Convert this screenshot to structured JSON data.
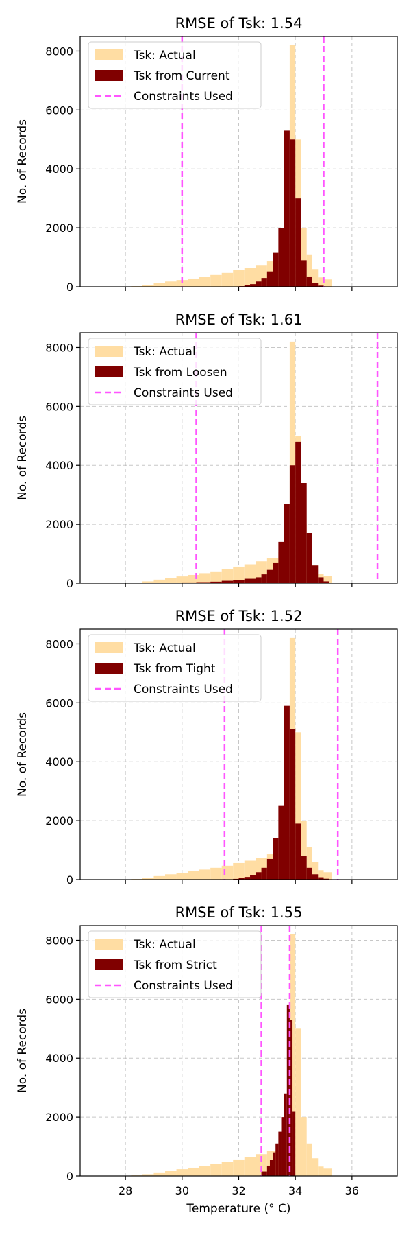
{
  "chart_data": [
    {
      "type": "bar",
      "title": "RMSE of Tsk: 1.54",
      "ylabel": "No. of Records",
      "xlabel": "",
      "xlim": [
        26.4,
        37.6
      ],
      "ylim": [
        0,
        8500
      ],
      "yticks": [
        0,
        2000,
        4000,
        6000,
        8000
      ],
      "xticks": [
        28,
        30,
        32,
        34,
        36
      ],
      "show_xtick_labels": false,
      "grid": true,
      "legend_position": "top-left",
      "colors": {
        "actual": "#ffdda3",
        "predicted": "#800000",
        "constraint": "#ff55ff"
      },
      "series": [
        {
          "name": "Tsk: Actual",
          "bins": [
            [
              27.8,
              28.2,
              10
            ],
            [
              28.2,
              28.6,
              20
            ],
            [
              28.6,
              29.0,
              60
            ],
            [
              29.0,
              29.4,
              120
            ],
            [
              29.4,
              29.8,
              180
            ],
            [
              29.8,
              30.2,
              230
            ],
            [
              30.2,
              30.6,
              280
            ],
            [
              30.6,
              31.0,
              340
            ],
            [
              31.0,
              31.4,
              400
            ],
            [
              31.4,
              31.8,
              470
            ],
            [
              31.8,
              32.2,
              560
            ],
            [
              32.2,
              32.6,
              640
            ],
            [
              32.6,
              33.0,
              740
            ],
            [
              33.0,
              33.4,
              860
            ],
            [
              33.4,
              33.6,
              1050
            ],
            [
              33.6,
              33.8,
              1450
            ],
            [
              33.8,
              34.0,
              8200
            ],
            [
              34.0,
              34.2,
              5000
            ],
            [
              34.2,
              34.4,
              2000
            ],
            [
              34.4,
              34.6,
              1100
            ],
            [
              34.6,
              34.8,
              600
            ],
            [
              34.8,
              35.0,
              320
            ],
            [
              35.0,
              35.3,
              250
            ]
          ]
        },
        {
          "name": "Tsk from Current",
          "bins": [
            [
              31.8,
              32.0,
              10
            ],
            [
              32.0,
              32.2,
              20
            ],
            [
              32.2,
              32.4,
              50
            ],
            [
              32.4,
              32.6,
              90
            ],
            [
              32.6,
              32.8,
              180
            ],
            [
              32.8,
              33.0,
              300
            ],
            [
              33.0,
              33.2,
              520
            ],
            [
              33.2,
              33.4,
              1150
            ],
            [
              33.4,
              33.6,
              2000
            ],
            [
              33.6,
              33.8,
              5300
            ],
            [
              33.8,
              34.0,
              5000
            ],
            [
              34.0,
              34.2,
              3000
            ],
            [
              34.2,
              34.4,
              900
            ],
            [
              34.4,
              34.6,
              350
            ],
            [
              34.6,
              34.8,
              120
            ],
            [
              34.8,
              35.0,
              40
            ]
          ]
        }
      ],
      "constraints_name": "Constraints Used",
      "constraints": [
        30.0,
        35.0
      ]
    },
    {
      "type": "bar",
      "title": "RMSE of Tsk: 1.61",
      "ylabel": "No. of Records",
      "xlabel": "",
      "xlim": [
        26.4,
        37.6
      ],
      "ylim": [
        0,
        8500
      ],
      "yticks": [
        0,
        2000,
        4000,
        6000,
        8000
      ],
      "xticks": [
        28,
        30,
        32,
        34,
        36
      ],
      "show_xtick_labels": false,
      "grid": true,
      "legend_position": "top-left",
      "colors": {
        "actual": "#ffdda3",
        "predicted": "#800000",
        "constraint": "#ff55ff"
      },
      "series": [
        {
          "name": "Tsk: Actual",
          "bins": [
            [
              27.8,
              28.2,
              10
            ],
            [
              28.2,
              28.6,
              20
            ],
            [
              28.6,
              29.0,
              60
            ],
            [
              29.0,
              29.4,
              120
            ],
            [
              29.4,
              29.8,
              180
            ],
            [
              29.8,
              30.2,
              230
            ],
            [
              30.2,
              30.6,
              280
            ],
            [
              30.6,
              31.0,
              340
            ],
            [
              31.0,
              31.4,
              400
            ],
            [
              31.4,
              31.8,
              470
            ],
            [
              31.8,
              32.2,
              560
            ],
            [
              32.2,
              32.6,
              640
            ],
            [
              32.6,
              33.0,
              740
            ],
            [
              33.0,
              33.4,
              860
            ],
            [
              33.4,
              33.6,
              1050
            ],
            [
              33.6,
              33.8,
              1450
            ],
            [
              33.8,
              34.0,
              8200
            ],
            [
              34.0,
              34.2,
              5000
            ],
            [
              34.2,
              34.4,
              2000
            ],
            [
              34.4,
              34.6,
              1100
            ],
            [
              34.6,
              34.8,
              600
            ],
            [
              34.8,
              35.0,
              320
            ],
            [
              35.0,
              35.3,
              250
            ]
          ]
        },
        {
          "name": "Tsk from Loosen",
          "bins": [
            [
              29.0,
              29.5,
              5
            ],
            [
              29.5,
              30.0,
              15
            ],
            [
              30.0,
              30.5,
              25
            ],
            [
              30.5,
              31.0,
              35
            ],
            [
              31.0,
              31.4,
              50
            ],
            [
              31.4,
              31.8,
              80
            ],
            [
              31.8,
              32.2,
              110
            ],
            [
              32.2,
              32.6,
              150
            ],
            [
              32.6,
              32.8,
              200
            ],
            [
              32.8,
              33.0,
              300
            ],
            [
              33.0,
              33.2,
              450
            ],
            [
              33.2,
              33.4,
              700
            ],
            [
              33.4,
              33.6,
              1400
            ],
            [
              33.6,
              33.8,
              2700
            ],
            [
              33.8,
              34.0,
              4000
            ],
            [
              34.0,
              34.2,
              4800
            ],
            [
              34.2,
              34.4,
              3400
            ],
            [
              34.4,
              34.6,
              1700
            ],
            [
              34.6,
              34.8,
              600
            ],
            [
              34.8,
              35.0,
              200
            ],
            [
              35.0,
              35.2,
              60
            ]
          ]
        }
      ],
      "constraints_name": "Constraints Used",
      "constraints": [
        30.5,
        36.9
      ]
    },
    {
      "type": "bar",
      "title": "RMSE of Tsk: 1.52",
      "ylabel": "No. of Records",
      "xlabel": "",
      "xlim": [
        26.4,
        37.6
      ],
      "ylim": [
        0,
        8500
      ],
      "yticks": [
        0,
        2000,
        4000,
        6000,
        8000
      ],
      "xticks": [
        28,
        30,
        32,
        34,
        36
      ],
      "show_xtick_labels": false,
      "grid": true,
      "legend_position": "top-left",
      "colors": {
        "actual": "#ffdda3",
        "predicted": "#800000",
        "constraint": "#ff55ff"
      },
      "series": [
        {
          "name": "Tsk: Actual",
          "bins": [
            [
              27.8,
              28.2,
              10
            ],
            [
              28.2,
              28.6,
              20
            ],
            [
              28.6,
              29.0,
              60
            ],
            [
              29.0,
              29.4,
              120
            ],
            [
              29.4,
              29.8,
              180
            ],
            [
              29.8,
              30.2,
              230
            ],
            [
              30.2,
              30.6,
              280
            ],
            [
              30.6,
              31.0,
              340
            ],
            [
              31.0,
              31.4,
              400
            ],
            [
              31.4,
              31.8,
              470
            ],
            [
              31.8,
              32.2,
              560
            ],
            [
              32.2,
              32.6,
              640
            ],
            [
              32.6,
              33.0,
              740
            ],
            [
              33.0,
              33.4,
              860
            ],
            [
              33.4,
              33.6,
              1050
            ],
            [
              33.6,
              33.8,
              1450
            ],
            [
              33.8,
              34.0,
              8200
            ],
            [
              34.0,
              34.2,
              5000
            ],
            [
              34.2,
              34.4,
              2000
            ],
            [
              34.4,
              34.6,
              1100
            ],
            [
              34.6,
              34.8,
              600
            ],
            [
              34.8,
              35.0,
              320
            ],
            [
              35.0,
              35.3,
              250
            ]
          ]
        },
        {
          "name": "Tsk from Tight",
          "bins": [
            [
              31.6,
              31.8,
              10
            ],
            [
              31.8,
              32.0,
              25
            ],
            [
              32.0,
              32.2,
              50
            ],
            [
              32.2,
              32.4,
              90
            ],
            [
              32.4,
              32.6,
              150
            ],
            [
              32.6,
              32.8,
              250
            ],
            [
              32.8,
              33.0,
              400
            ],
            [
              33.0,
              33.2,
              700
            ],
            [
              33.2,
              33.4,
              1400
            ],
            [
              33.4,
              33.6,
              2500
            ],
            [
              33.6,
              33.8,
              5900
            ],
            [
              33.8,
              34.0,
              5100
            ],
            [
              34.0,
              34.2,
              1900
            ],
            [
              34.2,
              34.4,
              800
            ],
            [
              34.4,
              34.6,
              400
            ],
            [
              34.6,
              34.8,
              180
            ],
            [
              34.8,
              35.0,
              80
            ],
            [
              35.0,
              35.2,
              30
            ]
          ]
        }
      ],
      "constraints_name": "Constraints Used",
      "constraints": [
        31.5,
        35.5
      ]
    },
    {
      "type": "bar",
      "title": "RMSE of Tsk: 1.55",
      "ylabel": "No. of Records",
      "xlabel": "Temperature (° C)",
      "xlim": [
        26.4,
        37.6
      ],
      "ylim": [
        0,
        8500
      ],
      "yticks": [
        0,
        2000,
        4000,
        6000,
        8000
      ],
      "xticks": [
        28,
        30,
        32,
        34,
        36
      ],
      "show_xtick_labels": true,
      "grid": true,
      "legend_position": "top-left",
      "colors": {
        "actual": "#ffdda3",
        "predicted": "#800000",
        "constraint": "#ff55ff"
      },
      "series": [
        {
          "name": "Tsk: Actual",
          "bins": [
            [
              27.8,
              28.2,
              10
            ],
            [
              28.2,
              28.6,
              20
            ],
            [
              28.6,
              29.0,
              60
            ],
            [
              29.0,
              29.4,
              120
            ],
            [
              29.4,
              29.8,
              180
            ],
            [
              29.8,
              30.2,
              230
            ],
            [
              30.2,
              30.6,
              280
            ],
            [
              30.6,
              31.0,
              340
            ],
            [
              31.0,
              31.4,
              400
            ],
            [
              31.4,
              31.8,
              470
            ],
            [
              31.8,
              32.2,
              560
            ],
            [
              32.2,
              32.6,
              640
            ],
            [
              32.6,
              33.0,
              740
            ],
            [
              33.0,
              33.4,
              860
            ],
            [
              33.4,
              33.6,
              1050
            ],
            [
              33.6,
              33.8,
              1450
            ],
            [
              33.8,
              34.0,
              8200
            ],
            [
              34.0,
              34.2,
              5000
            ],
            [
              34.2,
              34.4,
              2000
            ],
            [
              34.4,
              34.6,
              1100
            ],
            [
              34.6,
              34.8,
              600
            ],
            [
              34.8,
              35.0,
              320
            ],
            [
              35.0,
              35.3,
              250
            ]
          ]
        },
        {
          "name": "Tsk from Strict",
          "bins": [
            [
              32.8,
              33.0,
              150
            ],
            [
              33.0,
              33.1,
              350
            ],
            [
              33.1,
              33.2,
              550
            ],
            [
              33.2,
              33.3,
              800
            ],
            [
              33.3,
              33.4,
              1100
            ],
            [
              33.4,
              33.5,
              1500
            ],
            [
              33.5,
              33.6,
              2000
            ],
            [
              33.6,
              33.7,
              2800
            ],
            [
              33.7,
              33.8,
              5800
            ],
            [
              33.8,
              33.9,
              5300
            ],
            [
              33.9,
              34.0,
              2200
            ]
          ]
        }
      ],
      "constraints_name": "Constraints Used",
      "constraints": [
        32.8,
        33.8
      ]
    }
  ]
}
